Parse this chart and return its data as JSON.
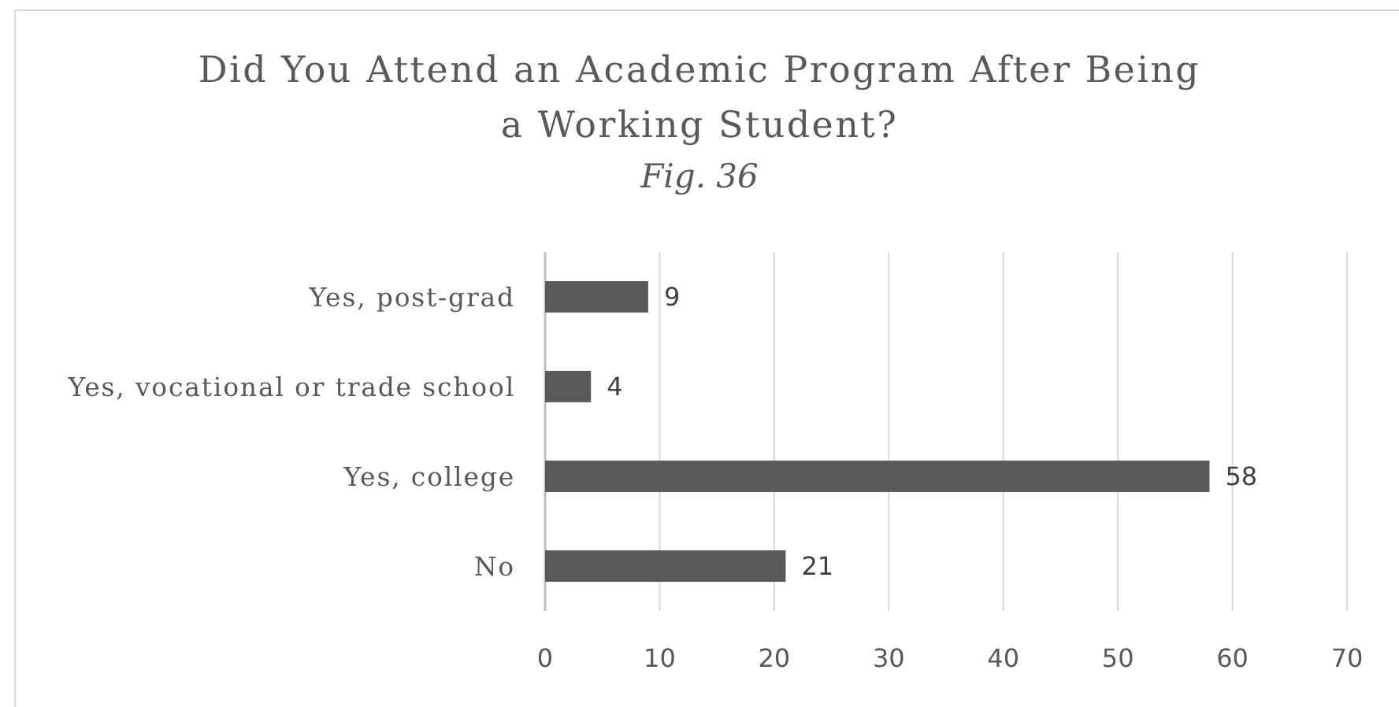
{
  "chart_data": {
    "type": "bar",
    "orientation": "horizontal",
    "title": "Did You Attend an Academic Program After Being a Working Student?",
    "subtitle": "Fig. 36",
    "categories": [
      "Yes, post-grad",
      "Yes, vocational or trade school",
      "Yes, college",
      "No"
    ],
    "values": [
      9,
      4,
      58,
      21
    ],
    "color": "#595959",
    "xlim": [
      0,
      70
    ],
    "xticks": [
      0,
      10,
      20,
      30,
      40,
      50,
      60,
      70
    ],
    "grid": "x",
    "data_labels": true,
    "legend": false
  }
}
